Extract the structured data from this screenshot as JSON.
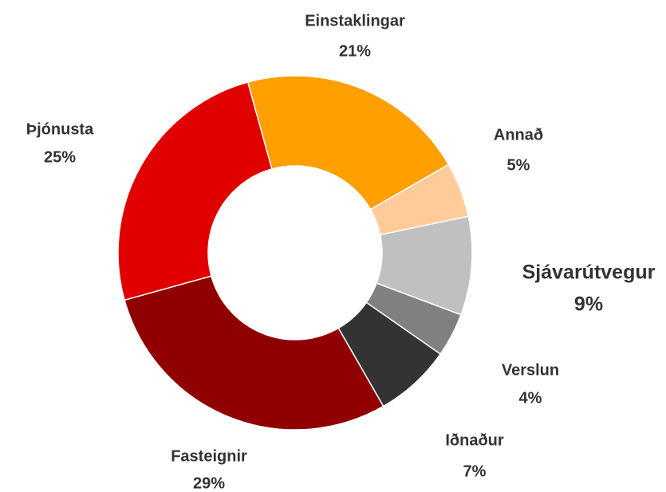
{
  "chart_data": {
    "type": "donut",
    "categories": [
      "Einstaklingar",
      "Annað",
      "Sjávarútvegur",
      "Verslun",
      "Iðnaður",
      "Fasteignir",
      "Þjónusta"
    ],
    "values": [
      21,
      5,
      9,
      4,
      7,
      29,
      25
    ],
    "value_labels": [
      "21%",
      "5%",
      "9%",
      "4%",
      "7%",
      "29%",
      "25%"
    ],
    "colors": [
      "#ff9f00",
      "#ffcc99",
      "#c0c0c0",
      "#808080",
      "#333333",
      "#900000",
      "#e00000"
    ],
    "highlight_index": 2,
    "highlight_color": "#d40000"
  }
}
